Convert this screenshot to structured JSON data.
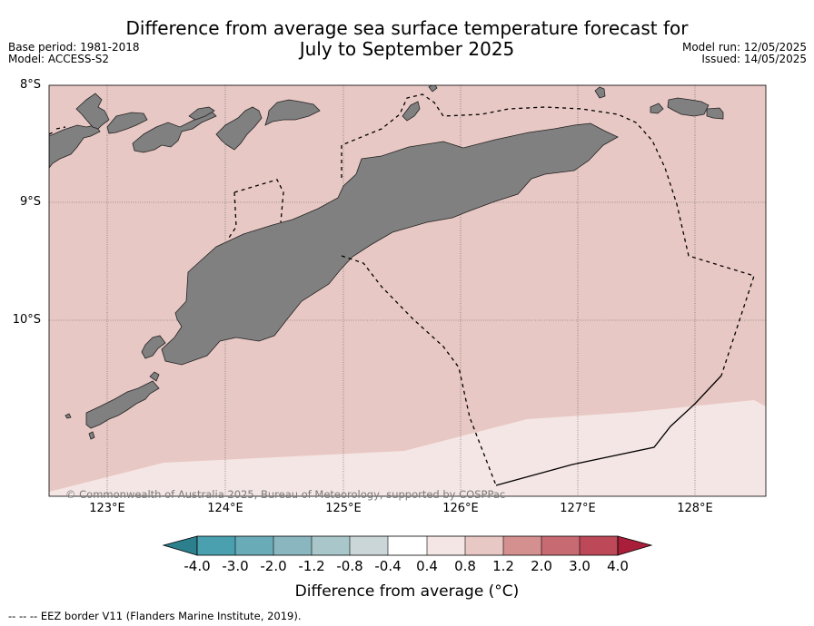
{
  "title": {
    "line1": "Difference from average sea surface temperature forecast for",
    "line2": "July to September 2025"
  },
  "meta_left": {
    "base_period": "Base period: 1981-2018",
    "model": "Model: ACCESS-S2"
  },
  "meta_right": {
    "model_run": "Model run: 12/05/2025",
    "issued": "Issued: 14/05/2025"
  },
  "map": {
    "lat_labels": [
      "8°S",
      "9°S",
      "10°S"
    ],
    "lon_labels": [
      "123°E",
      "124°E",
      "125°E",
      "126°E",
      "127°E",
      "128°E"
    ],
    "copyright": "© Commonwealth of Australia 2025, Bureau of Meteorology, supported by COSPPac",
    "colors": {
      "ocean_anomaly_0.8_1.2": "#e8c8c4",
      "ocean_anomaly_0.4_0.8": "#f4e6e4",
      "land": "#808080",
      "grid": "#555555"
    }
  },
  "colorbar": {
    "tick_labels": [
      "-4.0",
      "-3.0",
      "-2.0",
      "-1.2",
      "-0.8",
      "-0.4",
      "0.4",
      "0.8",
      "1.2",
      "2.0",
      "3.0",
      "4.0"
    ],
    "colors": [
      "#2c7f8c",
      "#4aa0ae",
      "#6aabb8",
      "#8ab6c0",
      "#a9c7ca",
      "#cad6d8",
      "#ffffff",
      "#f4e6e4",
      "#e8c8c4",
      "#d4908f",
      "#c76a72",
      "#bc4858",
      "#a91f3a"
    ],
    "title": "Difference from average (°C)"
  },
  "eez_note": "--  --  -- EEZ border V11 (Flanders Marine Institute, 2019)."
}
